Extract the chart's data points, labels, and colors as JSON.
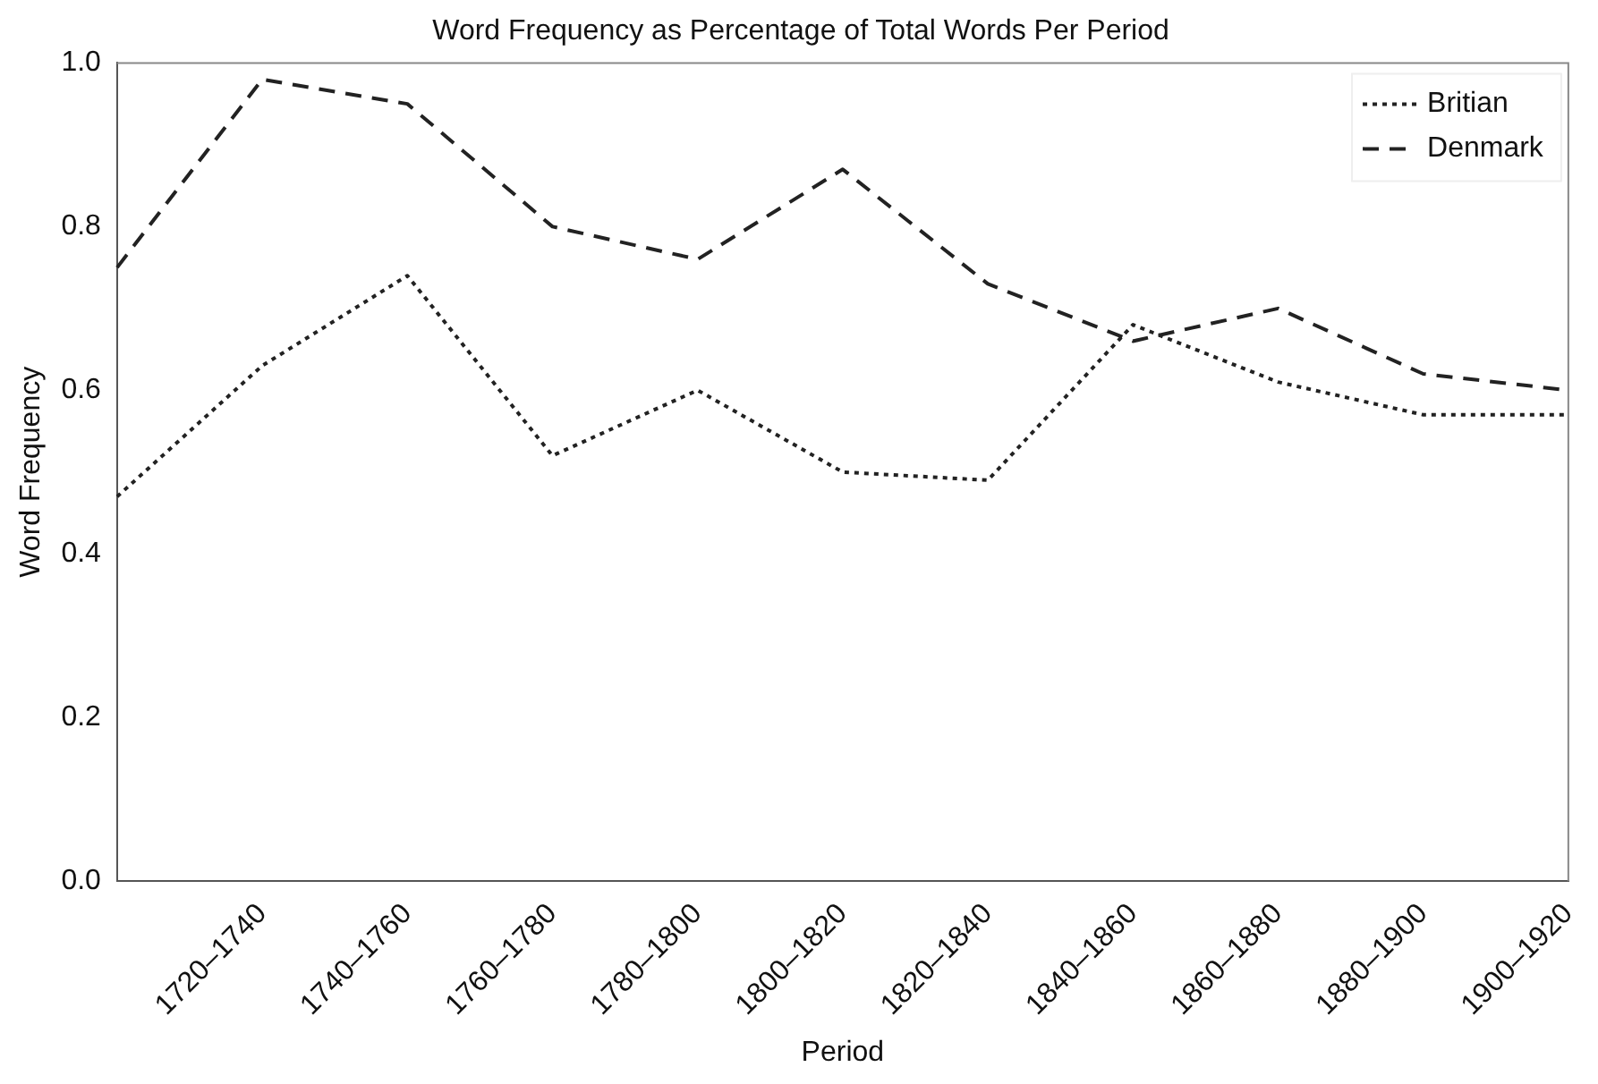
{
  "chart_data": {
    "type": "line",
    "title": "Word Frequency as Percentage of Total Words Per Period",
    "xlabel": "Period",
    "ylabel": "Word Frequency",
    "categories": [
      null,
      "1720–1740",
      "1740–1760",
      "1760–1780",
      "1780–1800",
      "1800–1820",
      "1820–1840",
      "1840–1860",
      "1860–1880",
      "1880–1900",
      "1900–1920"
    ],
    "series": [
      {
        "name": "Britian",
        "color": "#222222",
        "line_style": "dotted",
        "values": [
          0.47,
          0.63,
          0.74,
          0.52,
          0.6,
          0.5,
          0.49,
          0.68,
          0.61,
          0.57,
          0.57
        ]
      },
      {
        "name": "Denmark",
        "color": "#222222",
        "line_style": "dashed",
        "values": [
          0.75,
          0.98,
          0.95,
          0.8,
          0.76,
          0.87,
          0.73,
          0.66,
          0.7,
          0.62,
          0.6
        ]
      }
    ],
    "ylim": [
      0,
      1
    ],
    "yticks": [
      {
        "value": 0,
        "label": "0.0"
      },
      {
        "value": 0.2,
        "label": "0.2"
      },
      {
        "value": 0.4,
        "label": "0.4"
      },
      {
        "value": 0.6,
        "label": "0.6"
      },
      {
        "value": 0.8,
        "label": "0.8"
      },
      {
        "value": 1,
        "label": "1.0"
      }
    ],
    "grid": false,
    "legend": "top right",
    "marker": "none"
  }
}
